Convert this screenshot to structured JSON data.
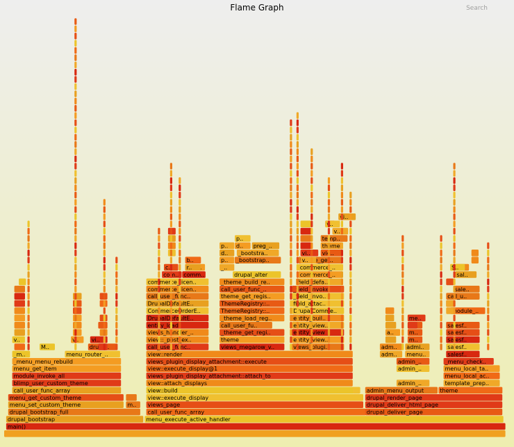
{
  "title": "Flame Graph",
  "search_label": "Search",
  "chart_data": {
    "type": "flamegraph",
    "title": "Flame Graph",
    "frames": [
      {
        "label": "",
        "depth": 0,
        "start": 0.0,
        "width": 99.2
      },
      {
        "label": "main()",
        "depth": 1,
        "start": 0.4,
        "width": 98.8
      },
      {
        "label": "drupal_bootstrap",
        "depth": 2,
        "start": 0.4,
        "width": 27.2
      },
      {
        "label": "menu_execute_active_handler",
        "depth": 2,
        "start": 27.8,
        "width": 71.0
      },
      {
        "label": "drupal_bootstrap_full",
        "depth": 3,
        "start": 0.8,
        "width": 26.2
      },
      {
        "label": "call_user_func_array",
        "depth": 3,
        "start": 28.1,
        "width": 43.5
      },
      {
        "label": "drupal_deliver_page",
        "depth": 3,
        "start": 71.4,
        "width": 27.2
      },
      {
        "label": "menu_set_custom_theme",
        "depth": 4,
        "start": 0.8,
        "width": 22.9
      },
      {
        "label": "mo..",
        "depth": 4,
        "start": 24.1,
        "width": 2.9
      },
      {
        "label": "views_page",
        "depth": 4,
        "start": 28.1,
        "width": 43.0
      },
      {
        "label": "drupal_deliver_html_page",
        "depth": 4,
        "start": 71.4,
        "width": 27.2
      },
      {
        "label": "menu_get_custom_theme",
        "depth": 5,
        "start": 0.8,
        "width": 22.9
      },
      {
        "label": "dr..",
        "depth": 5,
        "start": 24.1,
        "width": 2.2
      },
      {
        "label": "view::execute_display",
        "depth": 5,
        "start": 28.1,
        "width": 43.0
      },
      {
        "label": "drupal_render_page",
        "depth": 5,
        "start": 71.4,
        "width": 27.2
      },
      {
        "label": "call_user_func_array",
        "depth": 6,
        "start": 1.6,
        "width": 21.6
      },
      {
        "label": "view::build",
        "depth": 6,
        "start": 28.1,
        "width": 41.2
      },
      {
        "label": "v..",
        "depth": 6,
        "start": 69.0,
        "width": 1.5
      },
      {
        "label": "admin_menu_output",
        "depth": 6,
        "start": 71.4,
        "width": 14.4
      },
      {
        "label": "theme",
        "depth": 6,
        "start": 85.9,
        "width": 12.7
      },
      {
        "label": "blimp_user_custom_theme",
        "depth": 7,
        "start": 1.6,
        "width": 21.6
      },
      {
        "label": "view::attach_displays",
        "depth": 7,
        "start": 28.1,
        "width": 40.9
      },
      {
        "label": "admin_menu_tree",
        "depth": 7,
        "start": 77.6,
        "width": 6.6
      },
      {
        "label": "template_preproce..",
        "depth": 7,
        "start": 86.9,
        "width": 11.2
      },
      {
        "label": "module_invoke_all",
        "depth": 8,
        "start": 1.6,
        "width": 21.6
      },
      {
        "label": "views_plugin_display_attachment::attach_to",
        "depth": 8,
        "start": 28.1,
        "width": 40.9
      },
      {
        "label": "menu_local_actions",
        "depth": 8,
        "start": 86.9,
        "width": 11.2
      },
      {
        "label": "menu_get_item",
        "depth": 9,
        "start": 1.6,
        "width": 21.6
      },
      {
        "label": "view::execute_display@1",
        "depth": 9,
        "start": 28.1,
        "width": 40.9
      },
      {
        "label": "admin_menu_tree",
        "depth": 9,
        "start": 77.6,
        "width": 6.6
      },
      {
        "label": "menu_local_tasks",
        "depth": 9,
        "start": 86.9,
        "width": 11.2
      },
      {
        "label": "_menu_menu_rebuild",
        "depth": 10,
        "start": 1.6,
        "width": 21.6
      },
      {
        "label": "views_plugin_display_attachment::execute",
        "depth": 10,
        "start": 28.1,
        "width": 40.9
      },
      {
        "label": "admin_menu..",
        "depth": 10,
        "start": 77.6,
        "width": 6.6
      },
      {
        "label": "_menu_check_ac..",
        "depth": 10,
        "start": 86.9,
        "width": 10.0
      },
      {
        "label": "_men...",
        "depth": 11,
        "start": 1.6,
        "width": 3.6
      },
      {
        "label": "menu_router_build",
        "depth": 11,
        "start": 12.0,
        "width": 11.0
      },
      {
        "label": "view::render",
        "depth": 11,
        "start": 28.1,
        "width": 40.9
      },
      {
        "label": "admin_m..",
        "depth": 11,
        "start": 74.3,
        "width": 4.5
      },
      {
        "label": "menu_b..",
        "depth": 11,
        "start": 79.3,
        "width": 4.9
      },
      {
        "label": "salesforce..",
        "depth": 11,
        "start": 87.4,
        "width": 6.7
      },
      {
        "label": "Cal..",
        "depth": 12,
        "start": 2.0,
        "width": 2.2
      },
      {
        "label": "Me..",
        "depth": 12,
        "start": 7.0,
        "width": 3.1
      },
      {
        "label": "drupal_a..",
        "depth": 12,
        "start": 16.6,
        "width": 5.7
      },
      {
        "label": "call_user_func_array",
        "depth": 12,
        "start": 28.1,
        "width": 12.4
      },
      {
        "label": "views_megarow_view..",
        "depth": 12,
        "start": 42.6,
        "width": 12.9
      },
      {
        "label": "views_plugin_style..",
        "depth": 12,
        "start": 56.9,
        "width": 10.4
      },
      {
        "label": "admin_m..",
        "depth": 12,
        "start": 74.3,
        "width": 4.5
      },
      {
        "label": "admin_menu..",
        "depth": 12,
        "start": 79.3,
        "width": 4.9
      },
      {
        "label": "salesforce..",
        "depth": 12,
        "start": 87.4,
        "width": 6.7
      },
      {
        "label": "view::_post_execute",
        "depth": 13,
        "start": 28.1,
        "width": 12.4
      },
      {
        "label": "theme",
        "depth": 13,
        "start": 42.6,
        "width": 12.9
      },
      {
        "label": "entity_views_plugi..",
        "depth": 13,
        "start": 56.9,
        "width": 10.4
      },
      {
        "label": "salesforce..",
        "depth": 13,
        "start": 87.4,
        "width": 6.7
      },
      {
        "label": "views_handler_field_f..",
        "depth": 14,
        "start": 28.1,
        "width": 12.4
      },
      {
        "label": "_theme_get_registry",
        "depth": 14,
        "start": 42.6,
        "width": 12.9
      },
      {
        "label": "entity_view",
        "depth": 14,
        "start": 56.9,
        "width": 10.4
      },
      {
        "label": "salesforce..",
        "depth": 14,
        "start": 87.4,
        "width": 6.7
      },
      {
        "label": "entity_load",
        "depth": 15,
        "start": 28.1,
        "width": 12.4
      },
      {
        "label": "call_user_func_arr..",
        "depth": 15,
        "start": 42.6,
        "width": 10.5
      },
      {
        "label": "entity_views_plugi..",
        "depth": 15,
        "start": 56.9,
        "width": 10.4
      },
      {
        "label": "salesforce..",
        "depth": 15,
        "start": 87.4,
        "width": 6.7
      },
      {
        "label": "DrupalDefaultEntityCo..",
        "depth": 16,
        "start": 28.1,
        "width": 12.4
      },
      {
        "label": "_theme_load_registry",
        "depth": 16,
        "start": 42.6,
        "width": 12.9
      },
      {
        "label": "entity_build_content",
        "depth": 16,
        "start": 56.9,
        "width": 10.4
      },
      {
        "label": "CommerceOrderEntityCo..",
        "depth": 17,
        "start": 28.1,
        "width": 12.4
      },
      {
        "label": "ThemeRegistry::_c..",
        "depth": 17,
        "start": 42.6,
        "width": 12.9
      },
      {
        "label": "DrupalCommerceEnt..",
        "depth": 17,
        "start": 56.9,
        "width": 10.4
      },
      {
        "label": "module_inv..",
        "depth": 17,
        "start": 88.2,
        "width": 7.0
      },
      {
        "label": "DrupalDefaultEntityCo..",
        "depth": 18,
        "start": 28.1,
        "width": 12.4
      },
      {
        "label": "ThemeRegistry::ini..",
        "depth": 18,
        "start": 42.6,
        "width": 12.9
      },
      {
        "label": "field_attach_view",
        "depth": 18,
        "start": 56.9,
        "width": 10.4
      },
      {
        "label": "call_user_func_array@1",
        "depth": 19,
        "start": 28.1,
        "width": 12.4
      },
      {
        "label": "theme_get_registry@1",
        "depth": 19,
        "start": 42.6,
        "width": 12.9
      },
      {
        "label": "_field_invoke_def..",
        "depth": 19,
        "start": 56.9,
        "width": 10.4
      },
      {
        "label": "call_user_func..",
        "depth": 19,
        "start": 87.4,
        "width": 6.7
      },
      {
        "label": "commerce_license_bill..",
        "depth": 20,
        "start": 28.1,
        "width": 12.4
      },
      {
        "label": "call_user_func_arr..",
        "depth": 20,
        "start": 42.6,
        "width": 12.9
      },
      {
        "label": "_field_invoke",
        "depth": 20,
        "start": 56.9,
        "width": 10.4
      },
      {
        "label": "salesf..",
        "depth": 20,
        "start": 88.8,
        "width": 5.3
      },
      {
        "label": "commerce_license_bill..",
        "depth": 21,
        "start": 28.1,
        "width": 12.4
      },
      {
        "label": "_theme_build_regis..",
        "depth": 21,
        "start": 42.6,
        "width": 12.9
      },
      {
        "label": "field_default_view",
        "depth": 21,
        "start": 57.7,
        "width": 9.4
      },
      {
        "label": "comm..",
        "depth": 22,
        "start": 31.2,
        "width": 4.0
      },
      {
        "label": "comm..",
        "depth": 22,
        "start": 35.2,
        "width": 4.7
      },
      {
        "label": "drupal_alter",
        "depth": 22,
        "start": 45.2,
        "width": 9.6
      },
      {
        "label": "commerce_line_i..",
        "depth": 22,
        "start": 58.2,
        "width": 8.8
      },
      {
        "label": "salesf..",
        "depth": 22,
        "start": 89.2,
        "width": 4.3
      },
      {
        "label": "co..",
        "depth": 23,
        "start": 31.6,
        "width": 2.9
      },
      {
        "label": "comm..",
        "depth": 23,
        "start": 35.8,
        "width": 4.0
      },
      {
        "label": "_th..",
        "depth": 23,
        "start": 42.6,
        "width": 3.0
      },
      {
        "label": "commerce_embed..",
        "depth": 23,
        "start": 58.2,
        "width": 8.8
      },
      {
        "label": "Sfo..",
        "depth": 23,
        "start": 89.2,
        "width": 2.8
      },
      {
        "label": "php..",
        "depth": 24,
        "start": 42.6,
        "width": 3.0
      },
      {
        "label": "_bootstrap_the..",
        "depth": 24,
        "start": 45.6,
        "width": 9.2
      },
      {
        "label": "theme_get_registry",
        "depth": 24,
        "start": 58.2,
        "width": 8.8
      },
      {
        "label": "dru..",
        "depth": 25,
        "start": 42.6,
        "width": 3.0
      },
      {
        "label": "_bootstrap_pr..",
        "depth": 25,
        "start": 46.0,
        "width": 8.4
      },
      {
        "label": "views_pl..",
        "depth": 25,
        "start": 62.6,
        "width": 4.4
      },
      {
        "label": "pre..",
        "depth": 26,
        "start": 42.6,
        "width": 3.0
      },
      {
        "label": "dru..",
        "depth": 26,
        "start": 45.6,
        "width": 3.2
      },
      {
        "label": "preg_grep",
        "depth": 26,
        "start": 49.0,
        "width": 5.5
      },
      {
        "label": "theme",
        "depth": 26,
        "start": 62.6,
        "width": 4.4
      },
      {
        "label": "pre..",
        "depth": 27,
        "start": 45.6,
        "width": 3.2
      },
      {
        "label": "template..",
        "depth": 27,
        "start": 62.6,
        "width": 5.4
      },
      {
        "label": "vi..",
        "depth": 12,
        "start": 18.6,
        "width": 1.9
      },
      {
        "label": "vie..",
        "depth": 13,
        "start": 1.6,
        "width": 2.6
      },
      {
        "label": "view..",
        "depth": 13,
        "start": 17.0,
        "width": 3.5
      },
      {
        "label": "vie..",
        "depth": 13,
        "start": 13.2,
        "width": 2.6
      },
      {
        "label": "Vi..",
        "depth": 14,
        "start": 2.0,
        "width": 2.2
      },
      {
        "label": "Vi..",
        "depth": 15,
        "start": 2.0,
        "width": 2.2
      },
      {
        "label": "vi..",
        "depth": 16,
        "start": 2.0,
        "width": 2.2
      },
      {
        "label": "vi..",
        "depth": 17,
        "start": 2.0,
        "width": 2.2
      },
      {
        "label": "ca..",
        "depth": 18,
        "start": 2.0,
        "width": 2.2
      },
      {
        "label": "Re..",
        "depth": 19,
        "start": 2.0,
        "width": 2.2
      },
      {
        "label": "Re..",
        "depth": 20,
        "start": 2.0,
        "width": 2.2
      },
      {
        "label": "u..",
        "depth": 21,
        "start": 2.9,
        "width": 1.5
      },
      {
        "label": "e..",
        "depth": 14,
        "start": 13.6,
        "width": 1.8
      },
      {
        "label": "e..",
        "depth": 15,
        "start": 13.6,
        "width": 1.8
      },
      {
        "label": "E..",
        "depth": 16,
        "start": 13.6,
        "width": 1.8
      },
      {
        "label": "E..",
        "depth": 17,
        "start": 13.6,
        "width": 1.8
      },
      {
        "label": "E..",
        "depth": 18,
        "start": 13.6,
        "width": 1.8
      },
      {
        "label": "E..",
        "depth": 19,
        "start": 13.6,
        "width": 1.8
      },
      {
        "label": "v..",
        "depth": 14,
        "start": 18.9,
        "width": 1.6
      },
      {
        "label": "vi..",
        "depth": 15,
        "start": 18.9,
        "width": 1.6
      },
      {
        "label": "vi..",
        "depth": 16,
        "start": 18.9,
        "width": 1.6
      },
      {
        "label": "v..",
        "depth": 18,
        "start": 18.9,
        "width": 1.6
      },
      {
        "label": "v..",
        "depth": 19,
        "start": 18.9,
        "width": 1.6
      },
      {
        "label": "vi..",
        "depth": 15,
        "start": 18.6,
        "width": 1.9
      },
      {
        "label": "S..",
        "depth": 28,
        "start": 32.4,
        "width": 1.6
      },
      {
        "label": "f..",
        "depth": 27,
        "start": 32.4,
        "width": 1.6
      },
      {
        "label": "S..",
        "depth": 26,
        "start": 32.4,
        "width": 1.6
      },
      {
        "label": "E..",
        "depth": 25,
        "start": 32.4,
        "width": 1.6
      },
      {
        "label": "blim..",
        "depth": 24,
        "start": 35.8,
        "width": 3.2
      },
      {
        "label": "rule..",
        "depth": 23,
        "start": 35.8,
        "width": 3.2
      },
      {
        "label": "fle..",
        "depth": 26,
        "start": 58.6,
        "width": 2.2
      },
      {
        "label": "fle..",
        "depth": 27,
        "start": 58.6,
        "width": 2.2
      },
      {
        "label": "da..",
        "depth": 28,
        "start": 58.6,
        "width": 2.2
      },
      {
        "label": "ba..",
        "depth": 29,
        "start": 58.6,
        "width": 2.2
      },
      {
        "label": "view..",
        "depth": 25,
        "start": 58.6,
        "width": 3.6
      },
      {
        "label": "vie..",
        "depth": 24,
        "start": 58.6,
        "width": 3.2
      },
      {
        "label": "view..",
        "depth": 28,
        "start": 64.9,
        "width": 3.2
      },
      {
        "label": "vi..",
        "depth": 29,
        "start": 63.5,
        "width": 2.0
      },
      {
        "label": "views_p..",
        "depth": 30,
        "start": 66.1,
        "width": 3.5
      },
      {
        "label": "vie..",
        "depth": 29,
        "start": 63.5,
        "width": 3.0
      },
      {
        "label": "e..",
        "depth": 18,
        "start": 87.4,
        "width": 1.8
      },
      {
        "label": "E..",
        "depth": 17,
        "start": 87.4,
        "width": 1.8
      },
      {
        "label": "S..",
        "depth": 18,
        "start": 87.4,
        "width": 1.8
      },
      {
        "label": "S..",
        "depth": 21,
        "start": 87.4,
        "width": 1.6
      },
      {
        "label": "Sdd..",
        "depth": 23,
        "start": 88.2,
        "width": 3.0
      },
      {
        "label": "S..",
        "depth": 25,
        "start": 92.4,
        "width": 1.5
      },
      {
        "label": "S..",
        "depth": 24,
        "start": 92.4,
        "width": 1.5
      },
      {
        "label": "fi..",
        "depth": 17,
        "start": 75.4,
        "width": 1.8
      },
      {
        "label": "_m..",
        "depth": 16,
        "start": 75.4,
        "width": 1.8
      },
      {
        "label": "adm..",
        "depth": 14,
        "start": 75.4,
        "width": 3.0
      },
      {
        "label": "ad..",
        "depth": 15,
        "start": 75.4,
        "width": 2.2
      },
      {
        "label": "men..",
        "depth": 16,
        "start": 79.8,
        "width": 3.6
      },
      {
        "label": "m..",
        "depth": 15,
        "start": 79.8,
        "width": 3.0
      },
      {
        "label": "m..",
        "depth": 14,
        "start": 79.8,
        "width": 3.0
      },
      {
        "label": "m..",
        "depth": 13,
        "start": 79.8,
        "width": 3.0
      },
      {
        "label": "ad..",
        "depth": 13,
        "start": 75.4,
        "width": 2.2
      },
      {
        "label": "adm..",
        "depth": 15,
        "start": 79.8,
        "width": 2.0
      },
      {
        "label": "menu_b..",
        "depth": 16,
        "start": 79.8,
        "width": 3.6
      }
    ],
    "thin_frames": [
      {
        "depth": 22,
        "start": 13.6,
        "x": 1
      },
      {
        "depth": 30,
        "start": 13.6,
        "x": 1
      },
      {
        "depth": 40,
        "start": 13.6,
        "x": 1
      },
      {
        "depth": 50,
        "start": 13.6,
        "x": 1
      },
      {
        "depth": 60,
        "start": 13.6,
        "x": 1
      }
    ]
  }
}
